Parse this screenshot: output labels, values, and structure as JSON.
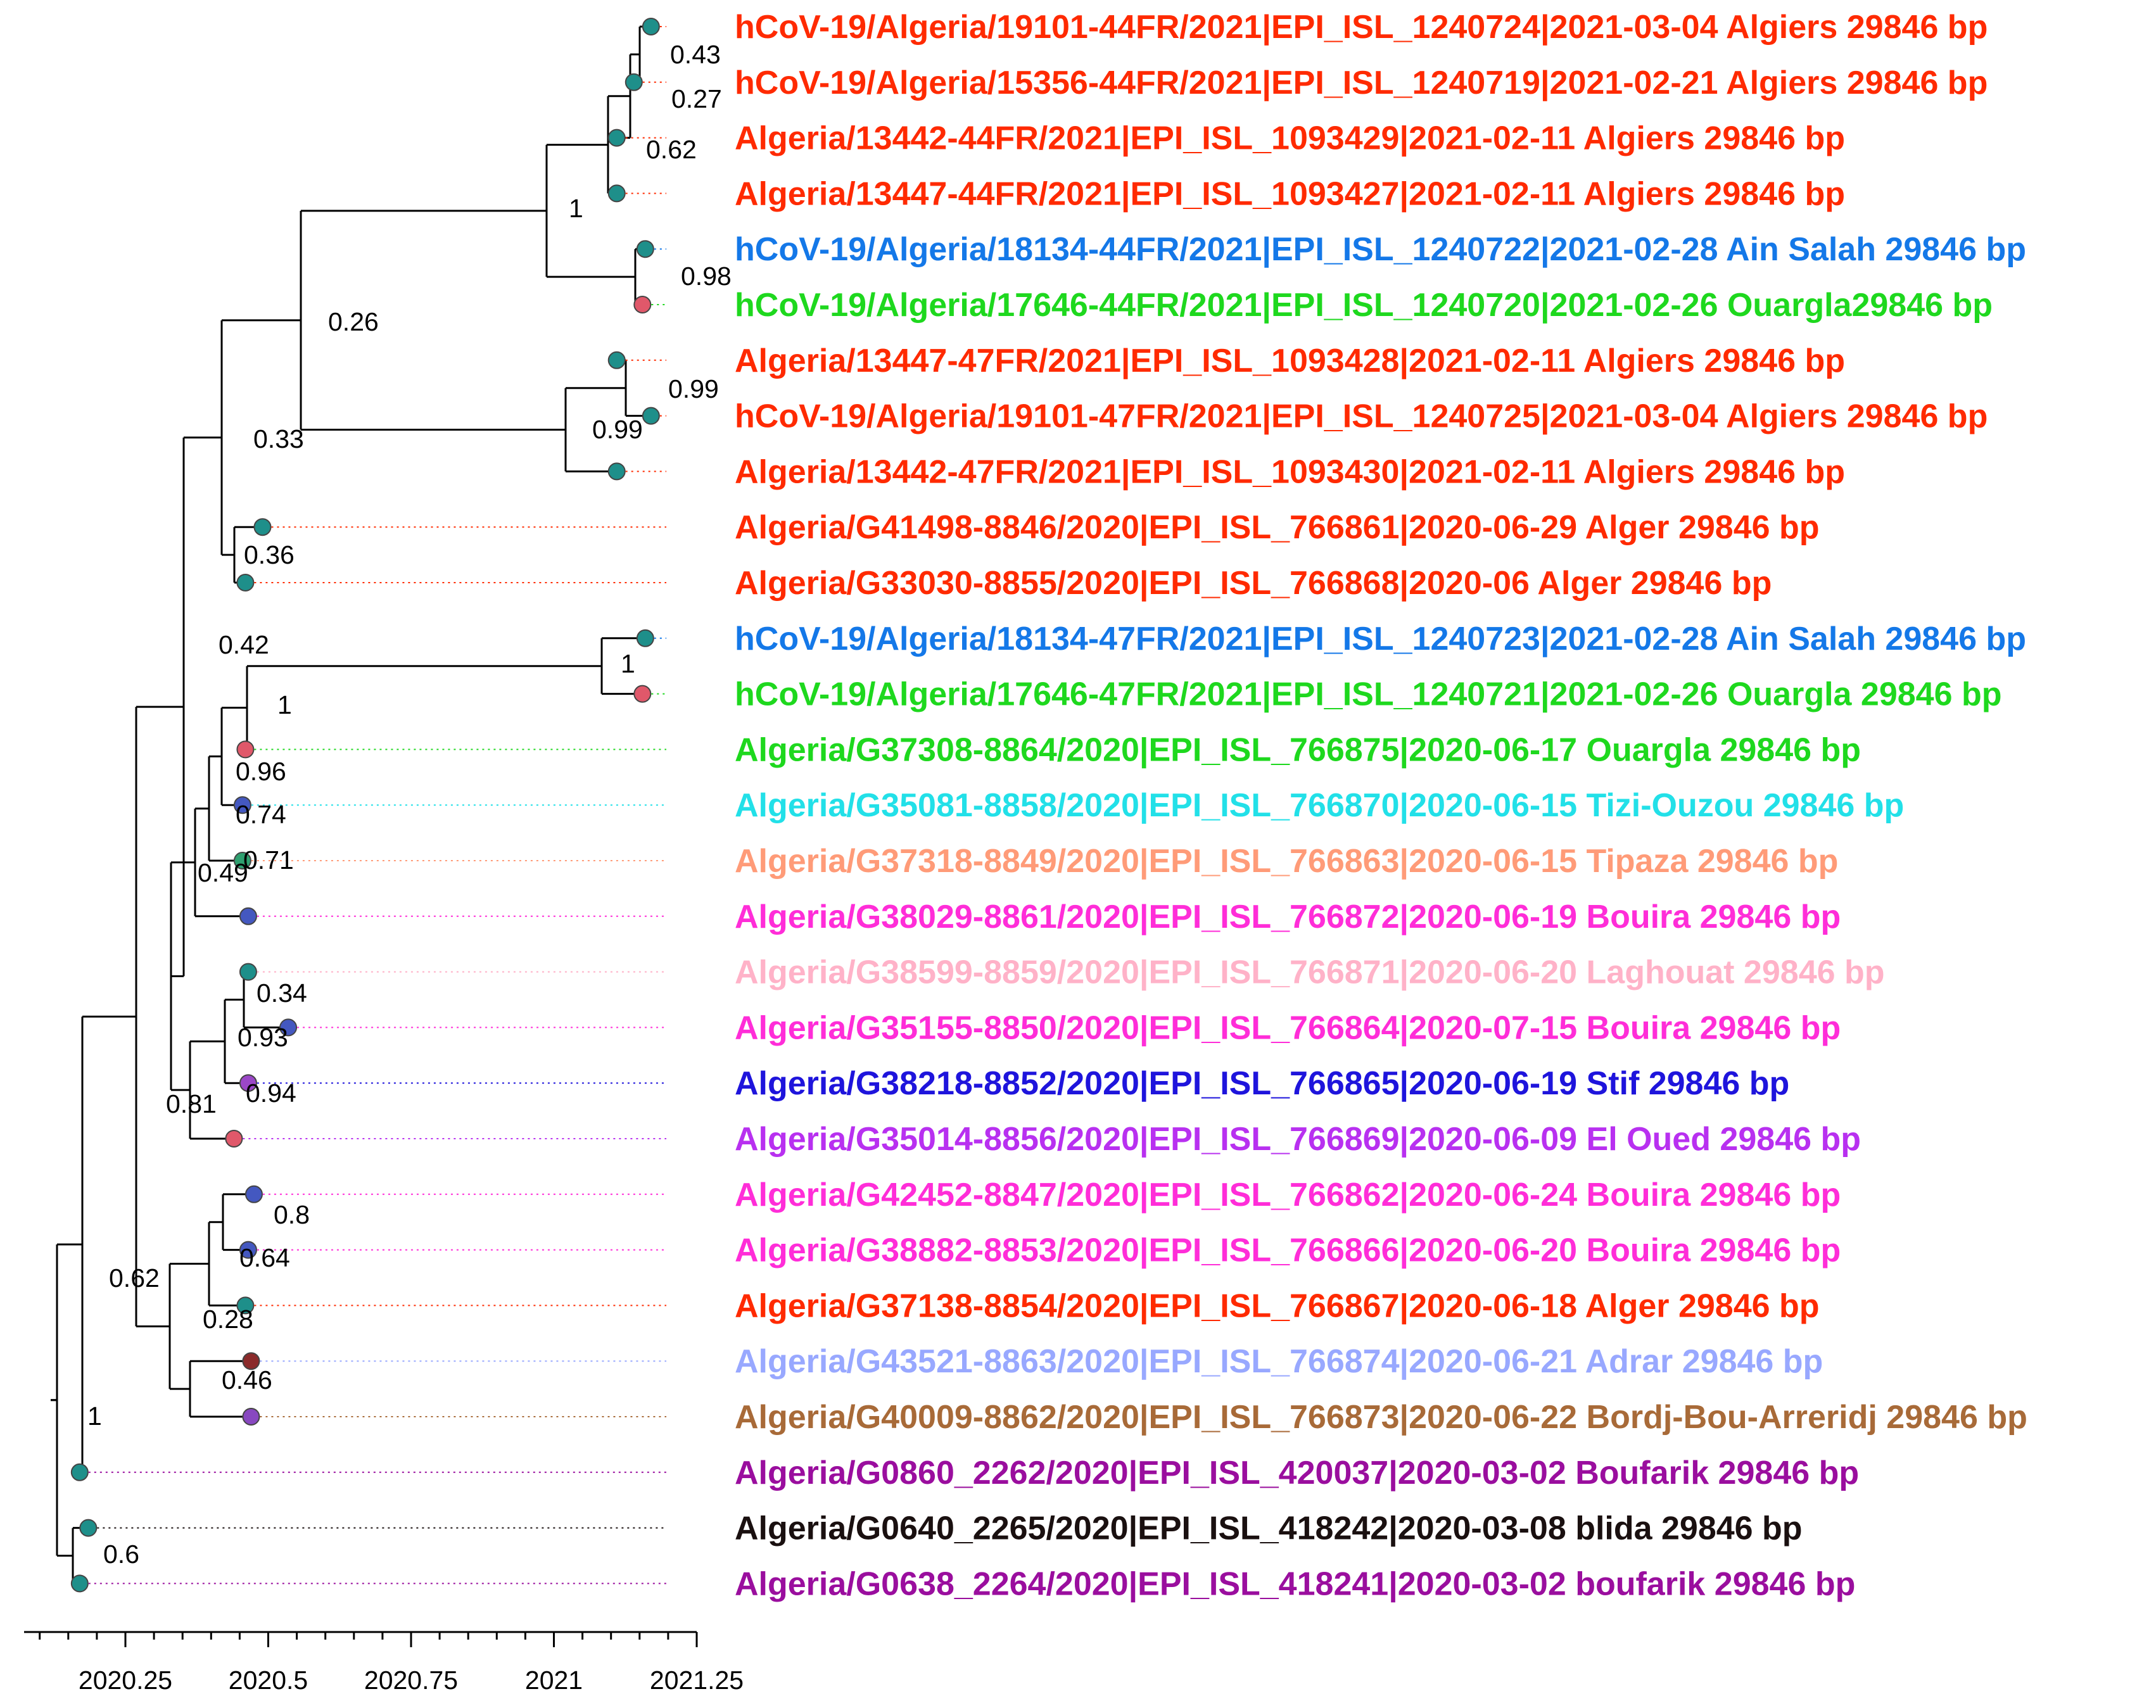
{
  "tips": [
    {
      "label": "hCoV-19/Algeria/19101-44FR/2021|EPI_ISL_1240724|2021-03-04 Algiers 29846 bp",
      "color": "#FF2A00",
      "node_color": "#1E8F8A",
      "date": 2021.17
    },
    {
      "label": "hCoV-19/Algeria/15356-44FR/2021|EPI_ISL_1240719|2021-02-21 Algiers 29846 bp",
      "color": "#FF2A00",
      "node_color": "#1E8F8A",
      "date": 2021.14
    },
    {
      "label": "Algeria/13442-44FR/2021|EPI_ISL_1093429|2021-02-11 Algiers 29846 bp",
      "color": "#FF2A00",
      "node_color": "#1E8F8A",
      "date": 2021.11
    },
    {
      "label": "Algeria/13447-44FR/2021|EPI_ISL_1093427|2021-02-11 Algiers 29846 bp",
      "color": "#FF2A00",
      "node_color": "#1E8F8A",
      "date": 2021.11
    },
    {
      "label": "hCoV-19/Algeria/18134-44FR/2021|EPI_ISL_1240722|2021-02-28 Ain Salah 29846 bp",
      "color": "#1478E8",
      "node_color": "#1E8F8A",
      "date": 2021.16
    },
    {
      "label": "hCoV-19/Algeria/17646-44FR/2021|EPI_ISL_1240720|2021-02-26 Ouargla29846 bp",
      "color": "#1ED81E",
      "node_color": "#E0586A",
      "date": 2021.155
    },
    {
      "label": "Algeria/13447-47FR/2021|EPI_ISL_1093428|2021-02-11 Algiers 29846 bp",
      "color": "#FF2A00",
      "node_color": "#1E8F8A",
      "date": 2021.11
    },
    {
      "label": "hCoV-19/Algeria/19101-47FR/2021|EPI_ISL_1240725|2021-03-04 Algiers 29846 bp",
      "color": "#FF2A00",
      "node_color": "#1E8F8A",
      "date": 2021.17
    },
    {
      "label": "Algeria/13442-47FR/2021|EPI_ISL_1093430|2021-02-11 Algiers 29846 bp",
      "color": "#FF2A00",
      "node_color": "#1E8F8A",
      "date": 2021.11
    },
    {
      "label": "Algeria/G41498-8846/2020|EPI_ISL_766861|2020-06-29 Alger 29846 bp",
      "color": "#FF2A00",
      "node_color": "#1E8F8A",
      "date": 2020.49
    },
    {
      "label": "Algeria/G33030-8855/2020|EPI_ISL_766868|2020-06 Alger 29846 bp",
      "color": "#FF2A00",
      "node_color": "#1E8F8A",
      "date": 2020.46
    },
    {
      "label": "hCoV-19/Algeria/18134-47FR/2021|EPI_ISL_1240723|2021-02-28 Ain Salah 29846 bp",
      "color": "#1478E8",
      "node_color": "#1E8F8A",
      "date": 2021.16
    },
    {
      "label": "hCoV-19/Algeria/17646-47FR/2021|EPI_ISL_1240721|2021-02-26 Ouargla 29846 bp",
      "color": "#1ED81E",
      "node_color": "#E0586A",
      "date": 2021.155
    },
    {
      "label": "Algeria/G37308-8864/2020|EPI_ISL_766875|2020-06-17 Ouargla 29846 bp",
      "color": "#1ED81E",
      "node_color": "#E0586A",
      "date": 2020.46
    },
    {
      "label": "Algeria/G35081-8858/2020|EPI_ISL_766870|2020-06-15 Tizi-Ouzou 29846 bp",
      "color": "#22E0E8",
      "node_color": "#4458C0",
      "date": 2020.455
    },
    {
      "label": "Algeria/G37318-8849/2020|EPI_ISL_766863|2020-06-15 Tipaza 29846 bp",
      "color": "#FF9B78",
      "node_color": "#2FA070",
      "date": 2020.455
    },
    {
      "label": "Algeria/G38029-8861/2020|EPI_ISL_766872|2020-06-19 Bouira 29846 bp",
      "color": "#FF2DD8",
      "node_color": "#4458C0",
      "date": 2020.465
    },
    {
      "label": "Algeria/G38599-8859/2020|EPI_ISL_766871|2020-06-20 Laghouat 29846 bp",
      "color": "#FFB2C8",
      "node_color": "#1E8F8A",
      "date": 2020.465
    },
    {
      "label": "Algeria/G35155-8850/2020|EPI_ISL_766864|2020-07-15 Bouira 29846 bp",
      "color": "#FF2DD8",
      "node_color": "#4458C0",
      "date": 2020.535
    },
    {
      "label": "Algeria/G38218-8852/2020|EPI_ISL_766865|2020-06-19 Stif 29846 bp",
      "color": "#1E14DC",
      "node_color": "#9B47C8",
      "date": 2020.465
    },
    {
      "label": "Algeria/G35014-8856/2020|EPI_ISL_766869|2020-06-09 El Oued 29846 bp",
      "color": "#B830F0",
      "node_color": "#E0586A",
      "date": 2020.44
    },
    {
      "label": "Algeria/G42452-8847/2020|EPI_ISL_766862|2020-06-24 Bouira 29846 bp",
      "color": "#FF2DD8",
      "node_color": "#4458C0",
      "date": 2020.475
    },
    {
      "label": "Algeria/G38882-8853/2020|EPI_ISL_766866|2020-06-20 Bouira 29846 bp",
      "color": "#FF2DD8",
      "node_color": "#4458C0",
      "date": 2020.465
    },
    {
      "label": "Algeria/G37138-8854/2020|EPI_ISL_766867|2020-06-18 Alger 29846 bp",
      "color": "#FF2A00",
      "node_color": "#1E8F8A",
      "date": 2020.46
    },
    {
      "label": "Algeria/G43521-8863/2020|EPI_ISL_766874|2020-06-21 Adrar 29846 bp",
      "color": "#98A8FF",
      "node_color": "#8B2A2A",
      "date": 2020.47
    },
    {
      "label": "Algeria/G40009-8862/2020|EPI_ISL_766873|2020-06-22 Bordj-Bou-Arreridj 29846 bp",
      "color": "#A86A38",
      "node_color": "#8848C0",
      "date": 2020.47
    },
    {
      "label": "Algeria/G0860_2262/2020|EPI_ISL_420037|2020-03-02 Boufarik 29846 bp",
      "color": "#9A0E9E",
      "node_color": "#1E8F8A",
      "date": 2020.17
    },
    {
      "label": "Algeria/G0640_2265/2020|EPI_ISL_418242|2020-03-08 blida 29846 bp",
      "color": "#1A1010",
      "node_color": "#1E8F8A",
      "date": 2020.185
    },
    {
      "label": "Algeria/G0638_2264/2020|EPI_ISL_418241|2020-03-02 boufarik 29846 bp",
      "color": "#9A0E9E",
      "node_color": "#1E8F8A",
      "date": 2020.17
    }
  ],
  "support_values": [
    "0.43",
    "0.27",
    "0.62",
    "1",
    "0.98",
    "0.26",
    "0.99",
    "0.99",
    "0.33",
    "0.36",
    "0.42",
    "1",
    "1",
    "0.96",
    "0.74",
    "0.71",
    "0.49",
    "0.34",
    "0.93",
    "0.94",
    "0.81",
    "0.8",
    "0.64",
    "0.28",
    "0.62",
    "0.46",
    "1",
    "0.6"
  ],
  "axis": {
    "ticks": [
      "2020.25",
      "2020.5",
      "2020.75",
      "2021",
      "2021.25"
    ],
    "tick_values": [
      2020.25,
      2020.5,
      2020.75,
      2021,
      2021.25
    ],
    "range": [
      2020.08,
      2021.25
    ]
  }
}
